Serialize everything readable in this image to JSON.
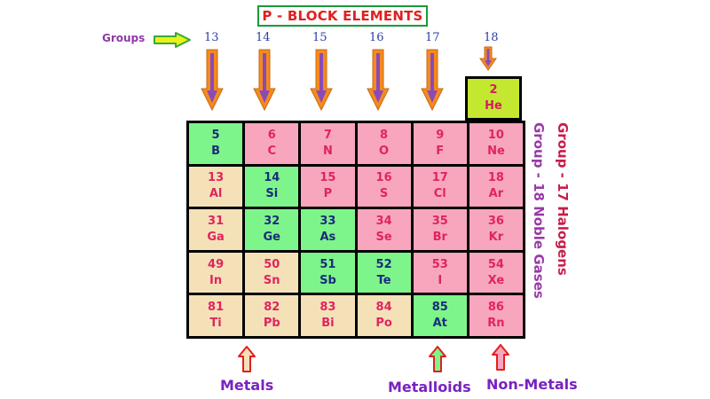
{
  "title": "P - BLOCK ELEMENTS",
  "groups_label": "Groups",
  "groups": [
    "13",
    "14",
    "15",
    "16",
    "17",
    "18"
  ],
  "helium": {
    "number": "2",
    "symbol": "He",
    "category": "nonmetal"
  },
  "rows": [
    [
      {
        "number": "5",
        "symbol": "B",
        "category": "metalloid"
      },
      {
        "number": "6",
        "symbol": "C",
        "category": "nonmetal"
      },
      {
        "number": "7",
        "symbol": "N",
        "category": "nonmetal"
      },
      {
        "number": "8",
        "symbol": "O",
        "category": "nonmetal"
      },
      {
        "number": "9",
        "symbol": "F",
        "category": "nonmetal"
      },
      {
        "number": "10",
        "symbol": "Ne",
        "category": "nonmetal"
      }
    ],
    [
      {
        "number": "13",
        "symbol": "Al",
        "category": "metal"
      },
      {
        "number": "14",
        "symbol": "Si",
        "category": "metalloid"
      },
      {
        "number": "15",
        "symbol": "P",
        "category": "nonmetal"
      },
      {
        "number": "16",
        "symbol": "S",
        "category": "nonmetal"
      },
      {
        "number": "17",
        "symbol": "Cl",
        "category": "nonmetal"
      },
      {
        "number": "18",
        "symbol": "Ar",
        "category": "nonmetal"
      }
    ],
    [
      {
        "number": "31",
        "symbol": "Ga",
        "category": "metal"
      },
      {
        "number": "32",
        "symbol": "Ge",
        "category": "metalloid"
      },
      {
        "number": "33",
        "symbol": "As",
        "category": "metalloid"
      },
      {
        "number": "34",
        "symbol": "Se",
        "category": "nonmetal"
      },
      {
        "number": "35",
        "symbol": "Br",
        "category": "nonmetal"
      },
      {
        "number": "36",
        "symbol": "Kr",
        "category": "nonmetal"
      }
    ],
    [
      {
        "number": "49",
        "symbol": "In",
        "category": "metal"
      },
      {
        "number": "50",
        "symbol": "Sn",
        "category": "metal"
      },
      {
        "number": "51",
        "symbol": "Sb",
        "category": "metalloid"
      },
      {
        "number": "52",
        "symbol": "Te",
        "category": "metalloid"
      },
      {
        "number": "53",
        "symbol": "I",
        "category": "nonmetal"
      },
      {
        "number": "54",
        "symbol": "Xe",
        "category": "nonmetal"
      }
    ],
    [
      {
        "number": "81",
        "symbol": "Ti",
        "category": "metal"
      },
      {
        "number": "82",
        "symbol": "Pb",
        "category": "metal"
      },
      {
        "number": "83",
        "symbol": "Bi",
        "category": "metal"
      },
      {
        "number": "84",
        "symbol": "Po",
        "category": "metal"
      },
      {
        "number": "85",
        "symbol": "At",
        "category": "metalloid"
      },
      {
        "number": "86",
        "symbol": "Rn",
        "category": "nonmetal"
      }
    ]
  ],
  "side_labels": {
    "group17": "Group - 17 Halogens",
    "group18": "Group - 18 Noble Gases"
  },
  "legend": {
    "metals": "Metals",
    "metalloids": "Metalloids",
    "nonmetals": "Non-Metals"
  },
  "colors": {
    "metal": "#f5e1b8",
    "metalloid": "#7ef58a",
    "nonmetal": "#f7a6bd",
    "helium": "#c4e830",
    "title_border": "#1a9a3a",
    "group_arrow_fill": "#f58a1e",
    "group_arrow_shaft": "#8a4ab8"
  },
  "icons": {
    "groups_pointer": "right-arrow-icon",
    "group_pointer": "down-arrow-icon",
    "legend_pointer": "up-arrow-icon"
  }
}
